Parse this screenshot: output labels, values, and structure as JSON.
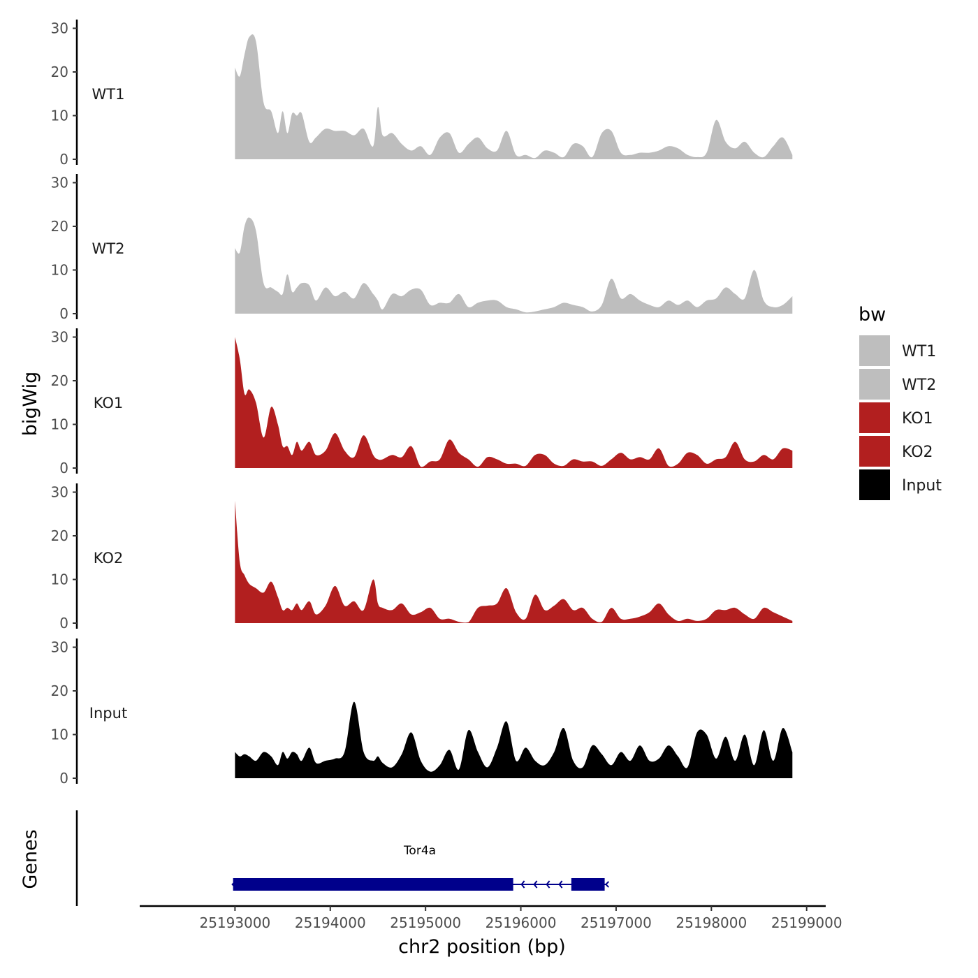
{
  "chart_data": {
    "type": "area",
    "title": "",
    "xlabel": "chr2 position (bp)",
    "ylabel": "bigWig",
    "xlim": [
      25192000,
      25199200
    ],
    "ylim": [
      0,
      31
    ],
    "x_ticks": [
      25193000,
      25194000,
      25195000,
      25196000,
      25197000,
      25198000,
      25199000
    ],
    "x_tick_labels": [
      "25193000",
      "25194000",
      "25195000",
      "25196000",
      "25197000",
      "25198000",
      "25199000"
    ],
    "y_ticks": [
      0,
      10,
      20,
      30
    ],
    "y_tick_labels": [
      "0",
      "10",
      "20",
      "30"
    ],
    "legend": {
      "title": "bw",
      "position": "right",
      "entries": [
        {
          "label": "WT1",
          "color": "#bebebe"
        },
        {
          "label": "WT2",
          "color": "#bebebe"
        },
        {
          "label": "KO1",
          "color": "#b21f1f"
        },
        {
          "label": "KO2",
          "color": "#b21f1f"
        },
        {
          "label": "Input",
          "color": "#000000"
        }
      ]
    },
    "series": [
      {
        "name": "WT1",
        "color": "#bebebe",
        "x": [
          25193000,
          25193050,
          25193100,
          25193150,
          25193220,
          25193300,
          25193380,
          25193450,
          25193500,
          25193550,
          25193600,
          25193650,
          25193700,
          25193780,
          25193850,
          25193950,
          25194050,
          25194150,
          25194250,
          25194350,
          25194450,
          25194500,
          25194550,
          25194650,
          25194750,
          25194850,
          25194950,
          25195050,
          25195150,
          25195250,
          25195350,
          25195450,
          25195550,
          25195650,
          25195750,
          25195850,
          25195950,
          25196050,
          25196150,
          25196250,
          25196350,
          25196450,
          25196550,
          25196650,
          25196750,
          25196850,
          25196950,
          25197050,
          25197150,
          25197250,
          25197350,
          25197450,
          25197550,
          25197650,
          25197750,
          25197850,
          25197950,
          25198050,
          25198150,
          25198250,
          25198350,
          25198450,
          25198550,
          25198650,
          25198750,
          25198850
        ],
        "values": [
          21,
          19,
          24,
          28,
          27,
          13,
          11,
          6,
          11,
          6,
          10.5,
          10,
          10.5,
          4,
          5,
          7,
          6.5,
          6.5,
          5.5,
          7,
          3,
          12,
          5.5,
          6,
          3.5,
          2,
          3,
          1,
          5,
          6,
          1.5,
          3.5,
          5,
          2.5,
          2,
          6.5,
          1,
          1,
          0.3,
          2,
          1.5,
          0.5,
          3.5,
          3,
          0.5,
          6,
          6.5,
          1.5,
          1,
          1.5,
          1.5,
          2,
          3,
          2.5,
          1,
          0.5,
          1.5,
          9,
          4,
          2.5,
          4,
          1.5,
          0.5,
          3,
          5,
          1
        ]
      },
      {
        "name": "WT2",
        "color": "#bebebe",
        "x": [
          25193000,
          25193050,
          25193100,
          25193150,
          25193220,
          25193300,
          25193380,
          25193450,
          25193500,
          25193550,
          25193600,
          25193650,
          25193700,
          25193780,
          25193850,
          25193950,
          25194050,
          25194150,
          25194250,
          25194350,
          25194450,
          25194500,
          25194550,
          25194650,
          25194750,
          25194850,
          25194950,
          25195050,
          25195150,
          25195250,
          25195350,
          25195450,
          25195550,
          25195650,
          25195750,
          25195850,
          25195950,
          25196050,
          25196150,
          25196250,
          25196350,
          25196450,
          25196550,
          25196650,
          25196750,
          25196850,
          25196950,
          25197050,
          25197150,
          25197250,
          25197350,
          25197450,
          25197550,
          25197650,
          25197750,
          25197850,
          25197950,
          25198050,
          25198150,
          25198250,
          25198350,
          25198450,
          25198550,
          25198650,
          25198750,
          25198850
        ],
        "values": [
          15,
          14,
          20,
          22,
          19,
          7,
          6,
          5,
          4.5,
          9,
          5,
          6,
          7,
          6.5,
          3,
          6,
          4,
          5,
          3.5,
          7,
          4.5,
          3,
          1,
          4.5,
          4,
          5.5,
          5.5,
          2,
          2.5,
          2.5,
          4.5,
          1.5,
          2.5,
          3,
          3,
          1.5,
          1,
          0.3,
          0.5,
          1,
          1.5,
          2.5,
          2,
          1.5,
          0.5,
          2,
          8,
          3.5,
          4.5,
          3,
          2,
          1.5,
          3,
          2,
          3,
          1.5,
          3,
          3.5,
          6,
          4.5,
          3.5,
          10,
          3,
          1.5,
          2,
          4
        ]
      },
      {
        "name": "KO1",
        "color": "#b21f1f",
        "x": [
          25193000,
          25193050,
          25193100,
          25193150,
          25193220,
          25193300,
          25193380,
          25193450,
          25193500,
          25193550,
          25193600,
          25193650,
          25193700,
          25193780,
          25193850,
          25193950,
          25194050,
          25194150,
          25194250,
          25194350,
          25194450,
          25194500,
          25194550,
          25194650,
          25194750,
          25194850,
          25194950,
          25195050,
          25195150,
          25195250,
          25195350,
          25195450,
          25195550,
          25195650,
          25195750,
          25195850,
          25195950,
          25196050,
          25196150,
          25196250,
          25196350,
          25196450,
          25196550,
          25196650,
          25196750,
          25196850,
          25196950,
          25197050,
          25197150,
          25197250,
          25197350,
          25197450,
          25197550,
          25197650,
          25197750,
          25197850,
          25197950,
          25198050,
          25198150,
          25198250,
          25198350,
          25198450,
          25198550,
          25198650,
          25198750,
          25198850
        ],
        "values": [
          30,
          25,
          17,
          18,
          15,
          7,
          14,
          10,
          5,
          5,
          3,
          6,
          4,
          6,
          3,
          4,
          8,
          4,
          2.5,
          7.5,
          3,
          2,
          2,
          3,
          2.5,
          5,
          0.3,
          1.5,
          2,
          6.5,
          3.5,
          2,
          0.3,
          2.5,
          2,
          1,
          1,
          0.5,
          3,
          3,
          1,
          0.5,
          2,
          1.5,
          1.5,
          0.5,
          2,
          3.5,
          2,
          2.5,
          2,
          4.5,
          0.5,
          1,
          3.5,
          3,
          1,
          2,
          2.5,
          6,
          2,
          1.5,
          3,
          2,
          4.5,
          4
        ]
      },
      {
        "name": "KO2",
        "color": "#b21f1f",
        "x": [
          25193000,
          25193050,
          25193100,
          25193150,
          25193220,
          25193300,
          25193380,
          25193450,
          25193500,
          25193550,
          25193600,
          25193650,
          25193700,
          25193780,
          25193850,
          25193950,
          25194050,
          25194150,
          25194250,
          25194350,
          25194450,
          25194500,
          25194550,
          25194650,
          25194750,
          25194850,
          25194950,
          25195050,
          25195150,
          25195250,
          25195350,
          25195450,
          25195550,
          25195650,
          25195750,
          25195850,
          25195950,
          25196050,
          25196150,
          25196250,
          25196350,
          25196450,
          25196550,
          25196650,
          25196750,
          25196850,
          25196950,
          25197050,
          25197150,
          25197250,
          25197350,
          25197450,
          25197550,
          25197650,
          25197750,
          25197850,
          25197950,
          25198050,
          25198150,
          25198250,
          25198350,
          25198450,
          25198550,
          25198650,
          25198750,
          25198850
        ],
        "values": [
          28,
          14,
          11,
          9,
          8,
          7,
          9.5,
          6,
          3,
          3.5,
          3,
          4.5,
          3,
          5,
          2,
          4,
          8.5,
          4,
          5,
          3,
          10,
          4.5,
          3.5,
          3,
          4.5,
          2,
          2.5,
          3.5,
          1,
          1,
          0.3,
          0.2,
          3.5,
          4,
          4.5,
          8,
          2.5,
          1,
          6.5,
          3,
          4,
          5.5,
          3,
          3.5,
          1,
          0.3,
          3.5,
          1,
          1,
          1.5,
          2.5,
          4.5,
          2,
          0.5,
          1,
          0.5,
          1,
          3,
          3,
          3.5,
          2,
          1,
          3.5,
          2.5,
          1.5,
          0.5
        ]
      },
      {
        "name": "Input",
        "color": "#000000",
        "x": [
          25193000,
          25193050,
          25193100,
          25193150,
          25193220,
          25193300,
          25193380,
          25193450,
          25193500,
          25193550,
          25193600,
          25193650,
          25193700,
          25193780,
          25193850,
          25193950,
          25194050,
          25194150,
          25194250,
          25194350,
          25194450,
          25194500,
          25194550,
          25194650,
          25194750,
          25194850,
          25194950,
          25195050,
          25195150,
          25195250,
          25195350,
          25195450,
          25195550,
          25195650,
          25195750,
          25195850,
          25195950,
          25196050,
          25196150,
          25196250,
          25196350,
          25196450,
          25196550,
          25196650,
          25196750,
          25196850,
          25196950,
          25197050,
          25197150,
          25197250,
          25197350,
          25197450,
          25197550,
          25197650,
          25197750,
          25197850,
          25197950,
          25198050,
          25198150,
          25198250,
          25198350,
          25198450,
          25198550,
          25198650,
          25198750,
          25198850
        ],
        "values": [
          6,
          5,
          5.5,
          5,
          4,
          6,
          5,
          3,
          6,
          4.5,
          6,
          5.5,
          4,
          7,
          3.5,
          4,
          4.5,
          6,
          17.5,
          6,
          4,
          5,
          3.5,
          2.5,
          5.5,
          10.5,
          4,
          1.5,
          3,
          6.5,
          2,
          11,
          6,
          2.5,
          7,
          13,
          4,
          7,
          4,
          3,
          6,
          11.5,
          4,
          2.5,
          7.5,
          5.5,
          3,
          6,
          4,
          7.5,
          4,
          4.5,
          7.5,
          5,
          2.5,
          10.5,
          10,
          4.5,
          9.5,
          4,
          10,
          3,
          11,
          4,
          11.5,
          6
        ]
      }
    ],
    "gene_track": {
      "label": "Genes",
      "gene_name": "Tor4a",
      "gene_color": "#00008b",
      "start": 25192980,
      "end": 25196900,
      "strand": "-",
      "exons": [
        [
          25192980,
          25195920
        ],
        [
          25196530,
          25196880
        ]
      ]
    }
  }
}
